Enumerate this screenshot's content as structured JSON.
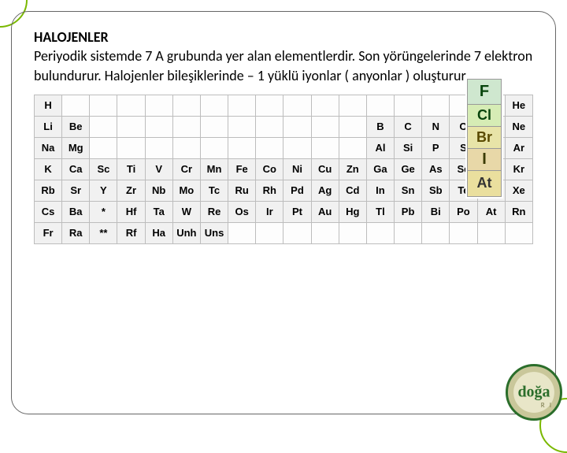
{
  "heading": "HALOJENLER",
  "paragraph": "Periyodik sistemde 7 A grubunda yer alan elementlerdir. Son yörüngelerinde 7 elektron bulundurur. Halojenler bileşiklerinde – 1 yüklü iyonlar ( anyonlar ) oluşturur.",
  "halogen_strip": [
    "F",
    "Cl",
    "Br",
    "I",
    "At"
  ],
  "periodic_rows": [
    [
      "H",
      "",
      "",
      "",
      "",
      "",
      "",
      "",
      "",
      "",
      "",
      "",
      "",
      "",
      "",
      "",
      "",
      "He"
    ],
    [
      "Li",
      "Be",
      "",
      "",
      "",
      "",
      "",
      "",
      "",
      "",
      "",
      "",
      "B",
      "C",
      "N",
      "O",
      "F",
      "Ne"
    ],
    [
      "Na",
      "Mg",
      "",
      "",
      "",
      "",
      "",
      "",
      "",
      "",
      "",
      "",
      "Al",
      "Si",
      "P",
      "S",
      "Cl",
      "Ar"
    ],
    [
      "K",
      "Ca",
      "Sc",
      "Ti",
      "V",
      "Cr",
      "Mn",
      "Fe",
      "Co",
      "Ni",
      "Cu",
      "Zn",
      "Ga",
      "Ge",
      "As",
      "Se",
      "Br",
      "Kr"
    ],
    [
      "Rb",
      "Sr",
      "Y",
      "Zr",
      "Nb",
      "Mo",
      "Tc",
      "Ru",
      "Rh",
      "Pd",
      "Ag",
      "Cd",
      "In",
      "Sn",
      "Sb",
      "Te",
      "I",
      "Xe"
    ],
    [
      "Cs",
      "Ba",
      "*",
      "Hf",
      "Ta",
      "W",
      "Re",
      "Os",
      "Ir",
      "Pt",
      "Au",
      "Hg",
      "Tl",
      "Pb",
      "Bi",
      "Po",
      "At",
      "Rn"
    ],
    [
      "Fr",
      "Ra",
      "**",
      "Rf",
      "Ha",
      "Unh",
      "Uns",
      "",
      "",
      "",
      "",
      "",
      "",
      "",
      "",
      "",
      "",
      ""
    ]
  ],
  "logo_text": "doğa",
  "footer_right": "R I",
  "colors": {
    "frame_border": "#666666",
    "accent_ring": "#7ab800",
    "cell_bg": "#f1f1f1",
    "cell_border": "#bdbdbd"
  }
}
